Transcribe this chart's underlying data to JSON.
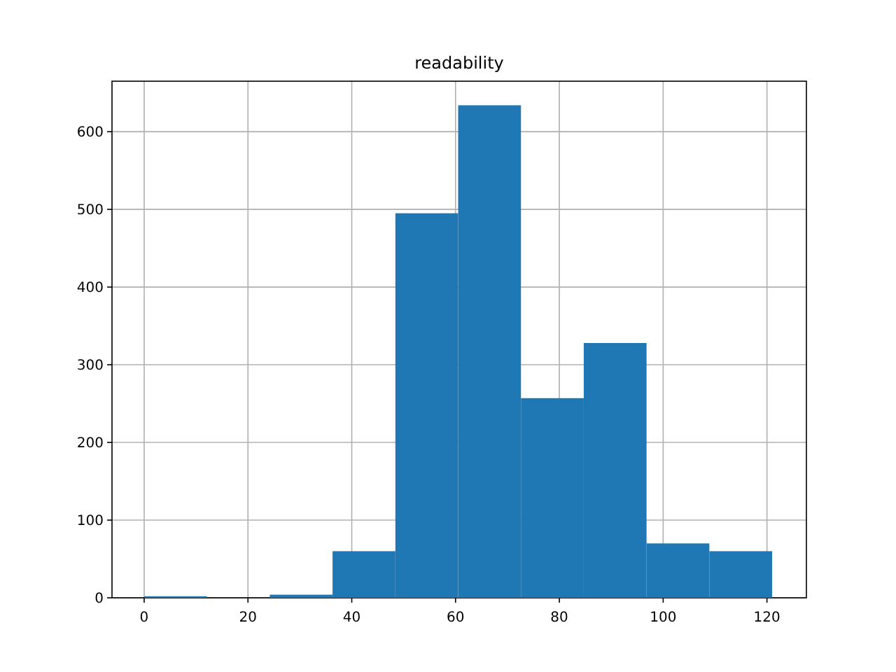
{
  "chart_data": {
    "type": "histogram",
    "title": "readability",
    "bins": [
      0,
      12.1,
      24.2,
      36.3,
      48.4,
      60.5,
      72.6,
      84.7,
      96.8,
      108.9,
      121
    ],
    "values": [
      2,
      0,
      4,
      60,
      495,
      634,
      257,
      328,
      70,
      60
    ],
    "color": "#1f77b4",
    "xlim": [
      -6.2,
      127.6
    ],
    "ylim": [
      0,
      665
    ],
    "xticks": [
      0,
      20,
      40,
      60,
      80,
      100,
      120
    ],
    "yticks": [
      0,
      100,
      200,
      300,
      400,
      500,
      600
    ],
    "grid": true
  }
}
